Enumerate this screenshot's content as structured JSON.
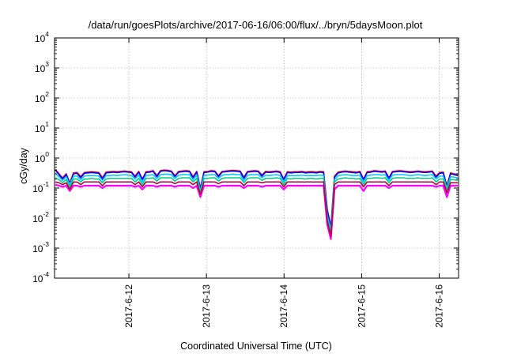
{
  "chart_data": {
    "type": "line",
    "title": "/data/run/goesPlots/archive/2017-06-16/06:00/flux/../bryn/5daysMoon.plot",
    "xlabel": "Coordinated Universal Time (UTC)",
    "ylabel": "cGy/day",
    "y_scale": "log",
    "ylim": [
      0.0001,
      10000
    ],
    "y_ticks": [
      {
        "value": 0.0001,
        "base": "10",
        "exp": "-4"
      },
      {
        "value": 0.001,
        "base": "10",
        "exp": "-3"
      },
      {
        "value": 0.01,
        "base": "10",
        "exp": "-2"
      },
      {
        "value": 0.1,
        "base": "10",
        "exp": "-1"
      },
      {
        "value": 1,
        "base": "10",
        "exp": "0"
      },
      {
        "value": 10,
        "base": "10",
        "exp": "1"
      },
      {
        "value": 100,
        "base": "10",
        "exp": "2"
      },
      {
        "value": 1000,
        "base": "10",
        "exp": "3"
      },
      {
        "value": 10000,
        "base": "10",
        "exp": "4"
      }
    ],
    "xlim": [
      "2017-06-11 01:00",
      "2017-06-16 06:00"
    ],
    "x_ticks": [
      "2017-6-12",
      "2017-6-13",
      "2017-6-14",
      "2017-6-15",
      "2017-6-16"
    ],
    "grid": true,
    "legend": "none",
    "series": [
      {
        "color": "#ff00ff",
        "values": [
          0.13,
          0.12,
          0.11,
          0.12,
          0.08,
          0.12,
          0.12,
          0.11,
          0.12,
          0.12,
          0.12,
          0.12,
          0.12,
          0.1,
          0.12,
          0.12,
          0.12,
          0.12,
          0.12,
          0.12,
          0.12,
          0.12,
          0.11,
          0.12,
          0.09,
          0.12,
          0.12,
          0.12,
          0.11,
          0.12,
          0.12,
          0.12,
          0.12,
          0.11,
          0.12,
          0.12,
          0.12,
          0.12,
          0.1,
          0.12,
          0.05,
          0.12,
          0.12,
          0.12,
          0.12,
          0.11,
          0.12,
          0.12,
          0.12,
          0.12,
          0.12,
          0.12,
          0.1,
          0.12,
          0.12,
          0.12,
          0.12,
          0.11,
          0.12,
          0.12,
          0.12,
          0.12,
          0.12,
          0.09,
          0.12,
          0.12,
          0.12,
          0.12,
          0.12,
          0.12,
          0.12,
          0.12,
          0.12,
          0.12,
          0.12,
          0.006,
          0.002,
          0.09,
          0.12,
          0.12,
          0.12,
          0.12,
          0.12,
          0.12,
          0.12,
          0.08,
          0.12,
          0.12,
          0.12,
          0.12,
          0.12,
          0.12,
          0.1,
          0.12,
          0.12,
          0.12,
          0.12,
          0.12,
          0.12,
          0.12,
          0.12,
          0.12,
          0.12,
          0.12,
          0.12,
          0.11,
          0.12,
          0.12,
          0.05,
          0.12,
          0.12,
          0.12
        ]
      },
      {
        "color": "#ff0000",
        "values": [
          0.42,
          0.3,
          0.22,
          0.3,
          0.15,
          0.32,
          0.33,
          0.24,
          0.33,
          0.34,
          0.35,
          0.34,
          0.33,
          0.22,
          0.34,
          0.35,
          0.36,
          0.35,
          0.36,
          0.37,
          0.36,
          0.35,
          0.25,
          0.36,
          0.2,
          0.35,
          0.36,
          0.38,
          0.26,
          0.38,
          0.4,
          0.39,
          0.37,
          0.26,
          0.36,
          0.37,
          0.38,
          0.37,
          0.24,
          0.36,
          0.1,
          0.35,
          0.36,
          0.38,
          0.37,
          0.26,
          0.36,
          0.37,
          0.38,
          0.39,
          0.38,
          0.37,
          0.23,
          0.36,
          0.37,
          0.38,
          0.37,
          0.27,
          0.36,
          0.35,
          0.36,
          0.37,
          0.35,
          0.2,
          0.35,
          0.34,
          0.35,
          0.35,
          0.36,
          0.34,
          0.35,
          0.35,
          0.34,
          0.36,
          0.35,
          0.02,
          0.005,
          0.25,
          0.34,
          0.36,
          0.37,
          0.36,
          0.35,
          0.34,
          0.36,
          0.2,
          0.35,
          0.36,
          0.38,
          0.37,
          0.36,
          0.37,
          0.22,
          0.36,
          0.37,
          0.38,
          0.37,
          0.36,
          0.35,
          0.36,
          0.37,
          0.36,
          0.35,
          0.36,
          0.37,
          0.25,
          0.33,
          0.34,
          0.12,
          0.32,
          0.3,
          0.28
        ]
      },
      {
        "color": "#0000ff",
        "values": [
          0.4,
          0.28,
          0.2,
          0.28,
          0.14,
          0.3,
          0.31,
          0.22,
          0.31,
          0.32,
          0.33,
          0.32,
          0.31,
          0.2,
          0.32,
          0.33,
          0.34,
          0.33,
          0.34,
          0.35,
          0.34,
          0.33,
          0.23,
          0.34,
          0.19,
          0.33,
          0.34,
          0.36,
          0.24,
          0.36,
          0.38,
          0.37,
          0.35,
          0.24,
          0.34,
          0.35,
          0.36,
          0.35,
          0.22,
          0.34,
          0.09,
          0.33,
          0.34,
          0.36,
          0.35,
          0.24,
          0.34,
          0.35,
          0.36,
          0.37,
          0.36,
          0.35,
          0.21,
          0.34,
          0.35,
          0.36,
          0.35,
          0.25,
          0.34,
          0.33,
          0.34,
          0.35,
          0.33,
          0.19,
          0.33,
          0.32,
          0.33,
          0.33,
          0.34,
          0.32,
          0.33,
          0.33,
          0.32,
          0.34,
          0.33,
          0.018,
          0.005,
          0.23,
          0.32,
          0.34,
          0.35,
          0.34,
          0.33,
          0.32,
          0.34,
          0.19,
          0.33,
          0.34,
          0.36,
          0.35,
          0.34,
          0.35,
          0.21,
          0.34,
          0.35,
          0.36,
          0.35,
          0.34,
          0.33,
          0.34,
          0.35,
          0.34,
          0.33,
          0.34,
          0.35,
          0.23,
          0.31,
          0.32,
          0.11,
          0.3,
          0.28,
          0.26
        ]
      },
      {
        "color": "#00c8ff",
        "values": [
          0.3,
          0.24,
          0.18,
          0.24,
          0.13,
          0.25,
          0.25,
          0.19,
          0.25,
          0.26,
          0.26,
          0.26,
          0.25,
          0.18,
          0.26,
          0.26,
          0.27,
          0.26,
          0.27,
          0.28,
          0.27,
          0.26,
          0.2,
          0.27,
          0.16,
          0.26,
          0.27,
          0.28,
          0.21,
          0.28,
          0.29,
          0.29,
          0.28,
          0.21,
          0.27,
          0.28,
          0.28,
          0.28,
          0.19,
          0.27,
          0.08,
          0.26,
          0.27,
          0.28,
          0.28,
          0.21,
          0.27,
          0.28,
          0.28,
          0.29,
          0.28,
          0.28,
          0.18,
          0.27,
          0.28,
          0.28,
          0.28,
          0.22,
          0.27,
          0.26,
          0.27,
          0.28,
          0.26,
          0.16,
          0.26,
          0.26,
          0.26,
          0.26,
          0.27,
          0.26,
          0.26,
          0.26,
          0.26,
          0.27,
          0.26,
          0.012,
          0.004,
          0.19,
          0.26,
          0.27,
          0.28,
          0.27,
          0.26,
          0.26,
          0.27,
          0.16,
          0.26,
          0.27,
          0.28,
          0.28,
          0.27,
          0.28,
          0.18,
          0.27,
          0.28,
          0.28,
          0.28,
          0.27,
          0.26,
          0.27,
          0.28,
          0.27,
          0.26,
          0.27,
          0.28,
          0.2,
          0.25,
          0.25,
          0.1,
          0.24,
          0.23,
          0.22
        ]
      },
      {
        "color": "#00d080",
        "values": [
          0.22,
          0.19,
          0.15,
          0.19,
          0.11,
          0.2,
          0.2,
          0.16,
          0.2,
          0.2,
          0.21,
          0.2,
          0.2,
          0.15,
          0.2,
          0.21,
          0.21,
          0.21,
          0.21,
          0.21,
          0.21,
          0.21,
          0.16,
          0.21,
          0.13,
          0.21,
          0.21,
          0.22,
          0.17,
          0.22,
          0.22,
          0.22,
          0.22,
          0.17,
          0.21,
          0.22,
          0.22,
          0.22,
          0.16,
          0.21,
          0.07,
          0.21,
          0.21,
          0.22,
          0.22,
          0.17,
          0.21,
          0.22,
          0.22,
          0.22,
          0.22,
          0.22,
          0.15,
          0.21,
          0.22,
          0.22,
          0.22,
          0.18,
          0.21,
          0.21,
          0.21,
          0.22,
          0.21,
          0.13,
          0.21,
          0.2,
          0.21,
          0.21,
          0.21,
          0.2,
          0.21,
          0.21,
          0.2,
          0.21,
          0.21,
          0.009,
          0.003,
          0.16,
          0.2,
          0.21,
          0.22,
          0.21,
          0.21,
          0.2,
          0.21,
          0.13,
          0.21,
          0.21,
          0.22,
          0.22,
          0.21,
          0.22,
          0.15,
          0.21,
          0.22,
          0.22,
          0.22,
          0.21,
          0.21,
          0.21,
          0.22,
          0.21,
          0.21,
          0.21,
          0.22,
          0.16,
          0.2,
          0.2,
          0.09,
          0.19,
          0.19,
          0.18
        ]
      },
      {
        "color": "#b00040",
        "values": [
          0.16,
          0.15,
          0.13,
          0.15,
          0.09,
          0.16,
          0.16,
          0.13,
          0.16,
          0.16,
          0.16,
          0.16,
          0.16,
          0.12,
          0.16,
          0.16,
          0.16,
          0.16,
          0.16,
          0.16,
          0.16,
          0.16,
          0.13,
          0.16,
          0.11,
          0.16,
          0.16,
          0.16,
          0.14,
          0.16,
          0.16,
          0.16,
          0.16,
          0.14,
          0.16,
          0.16,
          0.16,
          0.16,
          0.13,
          0.16,
          0.06,
          0.16,
          0.16,
          0.16,
          0.16,
          0.14,
          0.16,
          0.16,
          0.16,
          0.16,
          0.16,
          0.16,
          0.12,
          0.16,
          0.16,
          0.16,
          0.16,
          0.15,
          0.16,
          0.16,
          0.16,
          0.16,
          0.16,
          0.11,
          0.16,
          0.16,
          0.16,
          0.16,
          0.16,
          0.16,
          0.16,
          0.16,
          0.16,
          0.16,
          0.16,
          0.008,
          0.0025,
          0.13,
          0.16,
          0.16,
          0.16,
          0.16,
          0.16,
          0.16,
          0.16,
          0.11,
          0.16,
          0.16,
          0.16,
          0.16,
          0.16,
          0.16,
          0.12,
          0.16,
          0.16,
          0.16,
          0.16,
          0.16,
          0.16,
          0.16,
          0.16,
          0.16,
          0.16,
          0.16,
          0.16,
          0.13,
          0.16,
          0.16,
          0.07,
          0.15,
          0.15,
          0.15
        ]
      }
    ]
  }
}
